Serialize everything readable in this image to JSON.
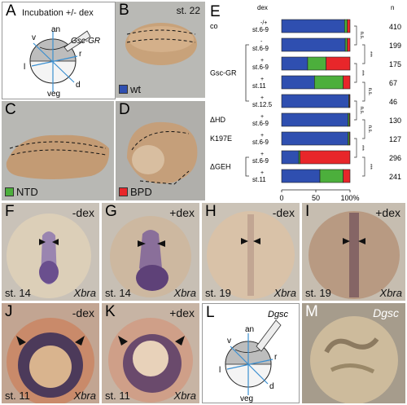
{
  "panels": {
    "A": {
      "letter": "A",
      "title": "Incubation +/- dex",
      "labels": {
        "an": "an",
        "veg": "veg",
        "v": "v",
        "l": "l",
        "r": "r",
        "d": "d",
        "gsc": "Gsc-GR"
      }
    },
    "B": {
      "letter": "B",
      "stage": "st. 22",
      "legend": "wt"
    },
    "C": {
      "letter": "C",
      "legend": "NTD"
    },
    "D": {
      "letter": "D",
      "legend": "BPD"
    },
    "F": {
      "letter": "F",
      "condition": "-dex",
      "stage": "st. 14",
      "gene": "Xbra"
    },
    "G": {
      "letter": "G",
      "condition": "+dex",
      "stage": "st. 14",
      "gene": "Xbra"
    },
    "H": {
      "letter": "H",
      "condition": "-dex",
      "stage": "st. 19",
      "gene": "Xbra"
    },
    "I": {
      "letter": "I",
      "condition": "+dex",
      "stage": "st. 19",
      "gene": "Xbra"
    },
    "J": {
      "letter": "J",
      "condition": "-dex",
      "stage": "st. 11",
      "gene": "Xbra"
    },
    "K": {
      "letter": "K",
      "condition": "+dex",
      "stage": "st. 11",
      "gene": "Xbra"
    },
    "L": {
      "letter": "L",
      "labels": {
        "an": "an",
        "veg": "veg",
        "v": "v",
        "l": "l",
        "r": "r",
        "d": "d",
        "gsc": "Dgsc"
      }
    },
    "M": {
      "letter": "M",
      "gene": "Dgsc"
    }
  },
  "colors": {
    "wt": "#2f4fb0",
    "ntd": "#4caf3c",
    "bpd": "#e8262a"
  },
  "chart_data": {
    "type": "bar",
    "letter": "E",
    "header_dex": "dex",
    "header_n": "n",
    "xticks": [
      "0",
      "50",
      "100%"
    ],
    "xlim": [
      0,
      100
    ],
    "categories": [
      "co",
      "Gsc-GR",
      "Gsc-GR",
      "Gsc-GR",
      "Gsc-GR",
      "ΔHD",
      "K197E",
      "ΔGEH",
      "ΔGEH"
    ],
    "groups": [
      {
        "label": "co",
        "rows": [
          0
        ]
      },
      {
        "label": "Gsc-GR",
        "rows": [
          1,
          2,
          3,
          4
        ]
      },
      {
        "label": "ΔHD",
        "rows": [
          5
        ]
      },
      {
        "label": "K197E",
        "rows": [
          6
        ]
      },
      {
        "label": "ΔGEH",
        "rows": [
          7,
          8
        ]
      }
    ],
    "rows": [
      {
        "dex": "-/+",
        "stage": "st.6-9",
        "n": "410",
        "wt": 92,
        "ntd": 4,
        "bpd": 4
      },
      {
        "dex": "-",
        "stage": "st.6-9",
        "n": "199",
        "wt": 93,
        "ntd": 3,
        "bpd": 4
      },
      {
        "dex": "+",
        "stage": "st.6-9",
        "n": "175",
        "wt": 38,
        "ntd": 27,
        "bpd": 35
      },
      {
        "dex": "+",
        "stage": "st.11",
        "n": "67",
        "wt": 48,
        "ntd": 42,
        "bpd": 10
      },
      {
        "dex": "+",
        "stage": "st.12.5",
        "n": "46",
        "wt": 98,
        "ntd": 1,
        "bpd": 1
      },
      {
        "dex": "+",
        "stage": "st.6-9",
        "n": "130",
        "wt": 97,
        "ntd": 2,
        "bpd": 1
      },
      {
        "dex": "+",
        "stage": "st.6-9",
        "n": "127",
        "wt": 97,
        "ntd": 2,
        "bpd": 1
      },
      {
        "dex": "+",
        "stage": "st.6-9",
        "n": "296",
        "wt": 25,
        "ntd": 2,
        "bpd": 73
      },
      {
        "dex": "+",
        "stage": "st.11",
        "n": "241",
        "wt": 56,
        "ntd": 34,
        "bpd": 10
      }
    ],
    "brackets": [
      {
        "rows": [
          0,
          1
        ],
        "label": "n.s."
      },
      {
        "rows": [
          1,
          2
        ],
        "label": "***"
      },
      {
        "rows": [
          2,
          3
        ],
        "label": "***"
      },
      {
        "rows": [
          3,
          4
        ],
        "label": "n.s."
      },
      {
        "rows": [
          4,
          5
        ],
        "label": "n.s."
      },
      {
        "rows": [
          5,
          6
        ],
        "label": "n.s."
      },
      {
        "rows": [
          6,
          7
        ],
        "label": "***"
      },
      {
        "rows": [
          7,
          8
        ],
        "label": "***"
      }
    ]
  }
}
